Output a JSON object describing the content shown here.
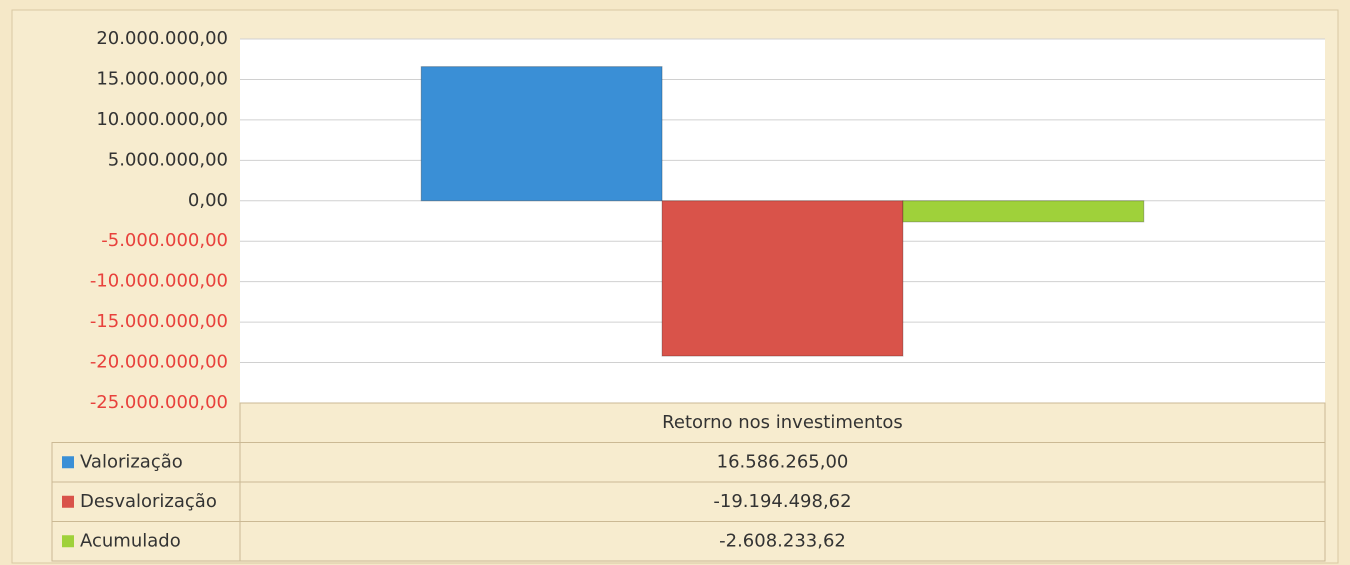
{
  "chart_data": {
    "type": "bar",
    "categories": [
      "Retorno nos investimentos"
    ],
    "series": [
      {
        "name": "Valorização",
        "color": "#3a8fd6",
        "values": [
          16586265
        ],
        "value_labels": [
          "16.586.265,00"
        ]
      },
      {
        "name": "Desvalorização",
        "color": "#d9534a",
        "values": [
          -19194498.62
        ],
        "value_labels": [
          "-19.194.498,62"
        ]
      },
      {
        "name": "Acumulado",
        "color": "#9fd13a",
        "values": [
          -2608233.62
        ],
        "value_labels": [
          "-2.608.233,62"
        ]
      }
    ],
    "ylim": [
      -25000000,
      20000000
    ],
    "yticks": [
      {
        "value": -25000000,
        "label": "-25.000.000,00"
      },
      {
        "value": -20000000,
        "label": "-20.000.000,00"
      },
      {
        "value": -15000000,
        "label": "-15.000.000,00"
      },
      {
        "value": -10000000,
        "label": "-10.000.000,00"
      },
      {
        "value": -5000000,
        "label": "-5.000.000,00"
      },
      {
        "value": 0,
        "label": "0,00"
      },
      {
        "value": 5000000,
        "label": "5.000.000,00"
      },
      {
        "value": 10000000,
        "label": "10.000.000,00"
      },
      {
        "value": 15000000,
        "label": "15.000.000,00"
      },
      {
        "value": 20000000,
        "label": "20.000.000,00"
      }
    ],
    "negative_color": "#e8413c",
    "grid": true
  }
}
